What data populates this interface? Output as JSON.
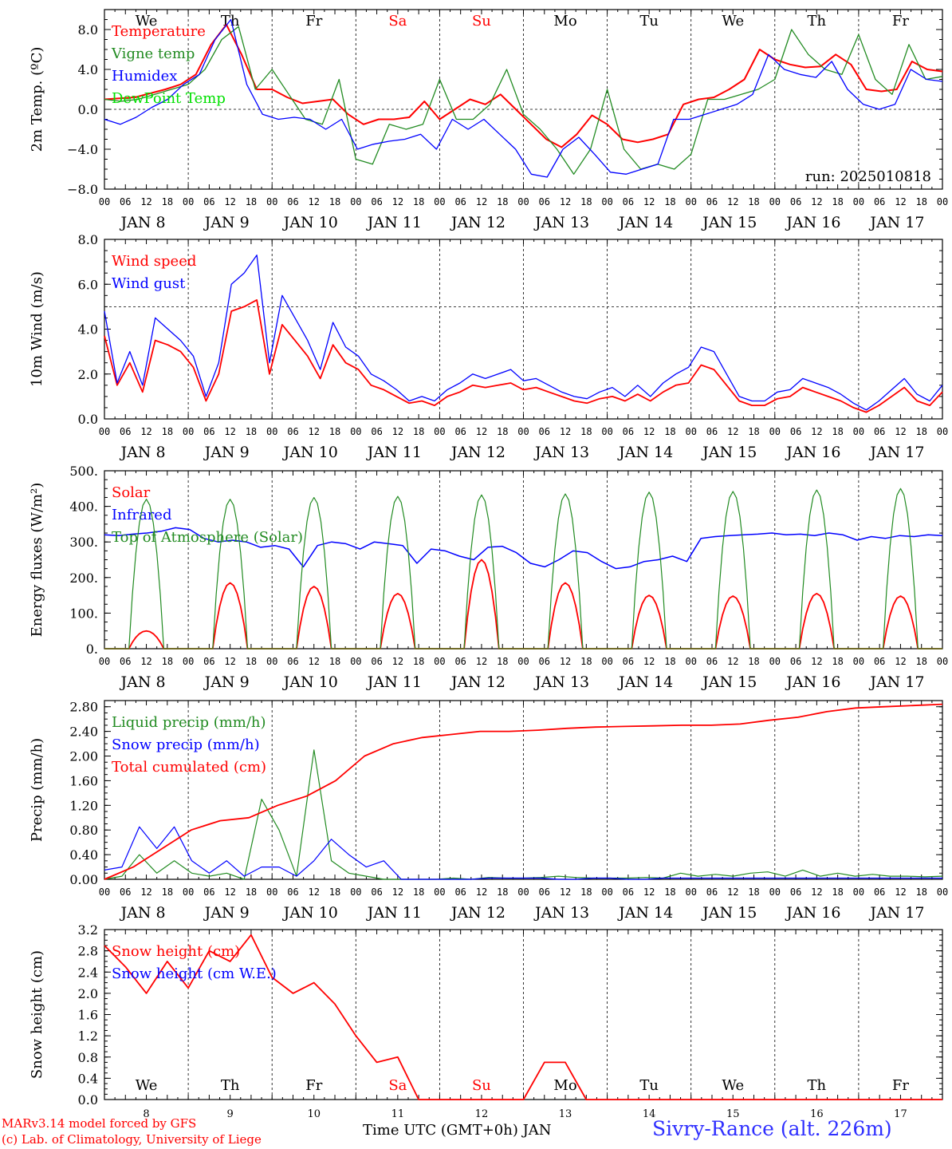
{
  "footer": {
    "model": "MARv3.14 model forced by GFS",
    "lab": "(c) Lab. of Climatology, University of Liege",
    "xlabel": "Time UTC (GMT+0h) JAN",
    "station": "Sivry-Rance (alt. 226m)"
  },
  "colors": {
    "red": "#ff0000",
    "green": "#228b22",
    "blue": "#0000ff",
    "lime": "#00e000",
    "axis": "#000000"
  },
  "days": {
    "weekday_labels": [
      "We",
      "Th",
      "Fr",
      "Sa",
      "Su",
      "Mo",
      "Tu",
      "We",
      "Th",
      "Fr"
    ],
    "weekend_color": "#ff0000",
    "weekend_index": [
      3,
      4
    ],
    "date_labels": [
      "JAN  8",
      "JAN  9",
      "JAN 10",
      "JAN 11",
      "JAN 12",
      "JAN 13",
      "JAN 14",
      "JAN 15",
      "JAN 16",
      "JAN 17"
    ],
    "day_numbers": [
      "8",
      "9",
      "10",
      "11",
      "12",
      "13",
      "14",
      "15",
      "16",
      "17"
    ],
    "hour_ticks": [
      "00",
      "06",
      "12",
      "18"
    ],
    "final_tick": "00"
  },
  "chart_data": [
    {
      "type": "line",
      "id": "temp",
      "ylabel": "2m Temp. (ºC)",
      "ylim": [
        -8,
        10
      ],
      "yticks": [
        "−8.0",
        "−4.0",
        "0.0",
        "4.0",
        "8.0"
      ],
      "ytick_values": [
        -8,
        -4,
        0,
        4,
        8
      ],
      "refline": 0,
      "annotation": "run: 2025010818",
      "show_weekdays": "top",
      "x_hours": [
        0,
        3,
        6,
        9,
        12,
        15,
        18,
        21,
        24,
        27,
        30,
        33,
        36,
        39,
        42,
        45,
        48,
        51,
        54,
        57,
        60,
        63,
        66,
        69,
        72,
        75,
        78,
        81,
        84,
        87,
        90,
        93,
        96,
        99,
        102,
        105,
        108,
        111,
        114,
        117,
        120,
        123,
        126,
        129,
        132,
        135,
        138,
        141,
        144,
        147,
        150,
        153,
        156,
        159,
        162,
        165,
        168,
        171,
        174,
        177,
        180,
        183,
        186,
        189,
        192,
        195,
        198,
        201,
        204,
        207,
        210,
        213,
        216,
        219,
        222,
        225,
        228,
        231,
        234,
        237,
        240
      ],
      "series": [
        {
          "name": "Temperature",
          "color": "#ff0000",
          "width": 2,
          "values": [
            1.0,
            1.1,
            1.2,
            1.6,
            2.0,
            2.5,
            3.5,
            6.5,
            8.5,
            5.5,
            2.0,
            2.0,
            1.2,
            0.6,
            0.8,
            1.0,
            -0.5,
            -1.5,
            -1.0,
            -1.0,
            -0.8,
            0.8,
            -1.0,
            0.0,
            1.0,
            0.5,
            1.5,
            0.0,
            -1.5,
            -3.0,
            -3.8,
            -2.5,
            -0.6,
            -1.5,
            -3.0,
            -3.3,
            -3.0,
            -2.5,
            0.5,
            1.0,
            1.2,
            2.0,
            3.0,
            6.0,
            5.0,
            4.5,
            4.2,
            4.3,
            5.5,
            4.5,
            2.0,
            1.8,
            2.0,
            4.8,
            4.0,
            3.8
          ]
        },
        {
          "name": "Vigne temp",
          "color": "#228b22",
          "width": 1.3,
          "values": [
            1.0,
            0.8,
            1.0,
            1.5,
            2.0,
            2.5,
            4.0,
            7.0,
            8.3,
            2.0,
            4.0,
            1.5,
            -1.0,
            -1.5,
            3.0,
            -5.0,
            -5.5,
            -1.5,
            -2.0,
            -1.5,
            3.0,
            -1.0,
            -1.0,
            0.5,
            4.0,
            -0.5,
            -2.0,
            -4.0,
            -6.5,
            -4.0,
            2.0,
            -4.0,
            -6.0,
            -5.5,
            -6.0,
            -4.5,
            1.0,
            1.0,
            1.5,
            2.0,
            3.0,
            8.0,
            5.5,
            4.0,
            3.5,
            7.5,
            3.0,
            1.5,
            6.5,
            3.0,
            3.3
          ]
        },
        {
          "name": "Humidex",
          "color": "#0000ff",
          "width": 1.3,
          "values": [
            -1.0,
            -1.5,
            -0.8,
            0.2,
            1.0,
            2.5,
            3.5,
            7.0,
            9.0,
            2.5,
            -0.5,
            -1.0,
            -0.8,
            -1.0,
            -2.0,
            -1.0,
            -4.0,
            -3.5,
            -3.2,
            -3.0,
            -2.5,
            -4.0,
            -1.0,
            -2.0,
            -1.0,
            -2.5,
            -4.0,
            -6.5,
            -6.8,
            -4.0,
            -2.8,
            -4.5,
            -6.3,
            -6.5,
            -6.0,
            -5.5,
            -1.0,
            -1.0,
            -0.5,
            0.0,
            0.5,
            1.5,
            5.5,
            4.0,
            3.5,
            3.2,
            4.8,
            2.0,
            0.5,
            0.0,
            0.5,
            4.0,
            3.0,
            2.8
          ]
        },
        {
          "name": "DewPoint Temp",
          "color": "#00e000",
          "width": 1.3,
          "values": []
        }
      ]
    },
    {
      "type": "line",
      "id": "wind",
      "ylabel": "10m Wind (m/s)",
      "ylim": [
        0,
        8
      ],
      "yticks": [
        "0.0",
        "2.0",
        "4.0",
        "6.0",
        "8.0"
      ],
      "ytick_values": [
        0,
        2,
        4,
        6,
        8
      ],
      "refline": 5,
      "series": [
        {
          "name": "Wind speed",
          "color": "#ff0000",
          "width": 1.8,
          "values": [
            3.7,
            1.5,
            2.5,
            1.2,
            3.5,
            3.3,
            3.0,
            2.3,
            0.8,
            2.0,
            4.8,
            5.0,
            5.3,
            2.0,
            4.2,
            3.5,
            2.8,
            1.8,
            3.3,
            2.5,
            2.2,
            1.5,
            1.3,
            1.0,
            0.7,
            0.8,
            0.6,
            1.0,
            1.2,
            1.5,
            1.4,
            1.5,
            1.6,
            1.3,
            1.4,
            1.2,
            1.0,
            0.8,
            0.7,
            0.9,
            1.0,
            0.8,
            1.1,
            0.8,
            1.2,
            1.5,
            1.6,
            2.4,
            2.2,
            1.5,
            0.8,
            0.6,
            0.6,
            0.9,
            1.0,
            1.4,
            1.2,
            1.0,
            0.8,
            0.5,
            0.3,
            0.6,
            1.0,
            1.4,
            0.8,
            0.6,
            1.2
          ]
        },
        {
          "name": "Wind gust",
          "color": "#0000ff",
          "width": 1.3,
          "values": [
            4.8,
            1.6,
            3.0,
            1.5,
            4.5,
            4.0,
            3.5,
            2.8,
            1.0,
            2.5,
            6.0,
            6.5,
            7.3,
            2.5,
            5.5,
            4.5,
            3.5,
            2.2,
            4.3,
            3.2,
            2.8,
            2.0,
            1.7,
            1.3,
            0.8,
            1.0,
            0.8,
            1.3,
            1.6,
            2.0,
            1.8,
            2.0,
            2.2,
            1.7,
            1.8,
            1.5,
            1.2,
            1.0,
            0.9,
            1.2,
            1.4,
            1.0,
            1.5,
            1.0,
            1.6,
            2.0,
            2.3,
            3.2,
            3.0,
            2.0,
            1.0,
            0.8,
            0.8,
            1.2,
            1.3,
            1.8,
            1.6,
            1.4,
            1.1,
            0.7,
            0.4,
            0.8,
            1.3,
            1.8,
            1.1,
            0.8,
            1.5
          ]
        }
      ]
    },
    {
      "type": "line",
      "id": "energy",
      "ylabel": "Energy fluxes (W/m²)",
      "ylim": [
        0,
        500
      ],
      "yticks": [
        "0.",
        "100.",
        "200.",
        "300.",
        "400.",
        "500."
      ],
      "ytick_values": [
        0,
        100,
        200,
        300,
        400,
        500
      ],
      "series": [
        {
          "name": "Solar",
          "color": "#ff0000",
          "width": 1.8,
          "peaks": [
            50,
            185,
            175,
            155,
            250,
            185,
            150,
            148,
            155,
            148
          ]
        },
        {
          "name": "Infrared",
          "color": "#0000ff",
          "width": 1.5,
          "values": [
            320,
            318,
            322,
            325,
            330,
            340,
            335,
            310,
            300,
            305,
            300,
            285,
            290,
            280,
            230,
            290,
            300,
            295,
            280,
            300,
            295,
            290,
            240,
            280,
            275,
            260,
            250,
            285,
            288,
            270,
            240,
            230,
            250,
            275,
            270,
            245,
            225,
            230,
            245,
            250,
            260,
            245,
            310,
            315,
            318,
            320,
            322,
            325,
            320,
            322,
            318,
            325,
            320,
            305,
            315,
            310,
            318,
            315,
            320,
            318
          ]
        },
        {
          "name": "Top of Atmosphere (Solar)",
          "color": "#228b22",
          "width": 1.2,
          "peaks": [
            420,
            420,
            425,
            428,
            432,
            435,
            440,
            442,
            446,
            450
          ]
        }
      ]
    },
    {
      "type": "line",
      "id": "precip",
      "ylabel": "Precip (mm/h)",
      "ylim": [
        0,
        2.9
      ],
      "yticks": [
        "0.00",
        "0.40",
        "0.80",
        "1.20",
        "1.60",
        "2.00",
        "2.40",
        "2.80"
      ],
      "ytick_values": [
        0,
        0.4,
        0.8,
        1.2,
        1.6,
        2.0,
        2.4,
        2.8
      ],
      "series": [
        {
          "name": "Liquid precip (mm/h)",
          "color": "#228b22",
          "width": 1.2,
          "values": [
            0,
            0.05,
            0.4,
            0.1,
            0.3,
            0.1,
            0.05,
            0.1,
            0.0,
            1.3,
            0.8,
            0.05,
            2.1,
            0.3,
            0.1,
            0.05,
            0,
            0,
            0,
            0,
            0.02,
            0,
            0.03,
            0.02,
            0.02,
            0.03,
            0.05,
            0.03,
            0.02,
            0.02,
            0.02,
            0.03,
            0.02,
            0.1,
            0.05,
            0.08,
            0.05,
            0.1,
            0.12,
            0.05,
            0.15,
            0.05,
            0.1,
            0.05,
            0.08,
            0.05,
            0.05,
            0.04,
            0.05
          ]
        },
        {
          "name": "Snow precip (mm/h)",
          "color": "#0000ff",
          "width": 1.2,
          "values": [
            0.15,
            0.2,
            0.85,
            0.5,
            0.85,
            0.3,
            0.1,
            0.3,
            0.05,
            0.2,
            0.2,
            0.05,
            0.3,
            0.65,
            0.4,
            0.2,
            0.3,
            0,
            0,
            0,
            0,
            0,
            0.02,
            0.02,
            0.02,
            0.02,
            0,
            0,
            0.02,
            0.02,
            0,
            0,
            0.02,
            0.02,
            0.02,
            0.02,
            0.02,
            0.02,
            0.02,
            0.02,
            0.02,
            0.02,
            0.02,
            0.02,
            0.02,
            0.02,
            0.02,
            0.02,
            0.02
          ]
        },
        {
          "name": "Total cumulated (cm)",
          "color": "#ff0000",
          "width": 1.8,
          "values": [
            0,
            0.2,
            0.5,
            0.8,
            0.95,
            1.0,
            1.2,
            1.35,
            1.6,
            2.0,
            2.2,
            2.3,
            2.35,
            2.4,
            2.4,
            2.42,
            2.45,
            2.47,
            2.48,
            2.49,
            2.5,
            2.5,
            2.52,
            2.58,
            2.63,
            2.72,
            2.78,
            2.8,
            2.82,
            2.84
          ]
        }
      ]
    },
    {
      "type": "line",
      "id": "snow",
      "ylabel": "Snow height (cm)",
      "ylim": [
        0,
        3.2
      ],
      "yticks": [
        "0.0",
        "0.4",
        "0.8",
        "1.2",
        "1.6",
        "2.0",
        "2.4",
        "2.8",
        "3.2"
      ],
      "ytick_values": [
        0,
        0.4,
        0.8,
        1.2,
        1.6,
        2.0,
        2.4,
        2.8,
        3.2
      ],
      "show_weekdays": "bottom",
      "series": [
        {
          "name": "Snow height (cm)",
          "color": "#ff0000",
          "width": 1.8,
          "values": [
            2.9,
            2.5,
            2.0,
            2.6,
            2.1,
            2.8,
            2.6,
            3.1,
            2.3,
            2.0,
            2.2,
            1.8,
            1.2,
            0.7,
            0.8,
            0.0,
            0.0,
            0.0,
            0.0,
            0.0,
            0.0,
            0.7,
            0.7,
            0.0,
            0.0,
            0.0,
            0.0,
            0.0,
            0.0,
            0.0,
            0.0,
            0.0,
            0.0,
            0.0,
            0.0,
            0.0,
            0.0,
            0.0,
            0.0,
            0.0,
            0.0
          ]
        },
        {
          "name": "Snow height (cm W.E.)",
          "color": "#0000ff",
          "width": 1.2,
          "values": []
        }
      ]
    }
  ]
}
